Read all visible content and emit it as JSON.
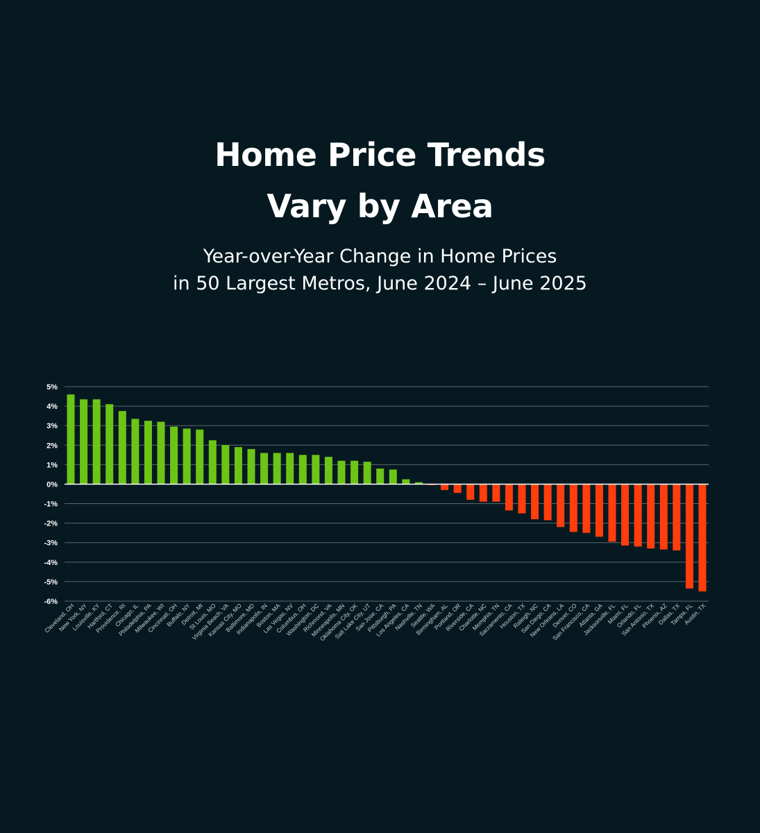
{
  "title_lines": [
    "Home Price Trends",
    "Vary by Area"
  ],
  "subtitle_lines": [
    "Year-over-Year Change in Home Prices",
    "in 50 Largest Metros, June 2024 – June 2025"
  ],
  "colors": {
    "background": "#061920",
    "positive": "#6CC417",
    "negative": "#FF3D0D",
    "grid": "#5b6a70",
    "zero_line": "#ffffff",
    "text": "#ffffff"
  },
  "chart_data": {
    "type": "bar",
    "title": "Year-over-Year Change in Home Prices in 50 Largest Metros, June 2024 – June 2025",
    "xlabel": "",
    "ylabel": "",
    "ylim": [
      -6,
      5
    ],
    "yticks": [
      5,
      4,
      3,
      2,
      1,
      0,
      -1,
      -2,
      -3,
      -4,
      -5,
      -6
    ],
    "ytick_labels": [
      "5%",
      "4%",
      "3%",
      "2%",
      "1%",
      "0%",
      "-1%",
      "-2%",
      "-3%",
      "-4%",
      "-5%",
      "-6%"
    ],
    "grid": true,
    "legend": "none",
    "categories": [
      "Cleveland, OH",
      "New York, NY",
      "Louisville, KY",
      "Hartford, CT",
      "Providence, RI",
      "Chicago, IL",
      "Philadelphia, PA",
      "Milwaukee, WI",
      "Cincinnati, OH",
      "Buffalo, NY",
      "Detroit, MI",
      "St Louis, MO",
      "Virginia Beach, VA",
      "Kansas City, MO",
      "Baltimore, MD",
      "Indianapolis, IN",
      "Boston, MA",
      "Las Vegas, NV",
      "Columbus, OH",
      "Washington, DC",
      "Richmond, VA",
      "Minneapolis, MN",
      "Oklahoma City, OK",
      "Salt Lake City, UT",
      "San Jose, CA",
      "Pittsburgh, PA",
      "Los Angeles, CA",
      "Nashville, TN",
      "Seattle, WA",
      "Birmingham, AL",
      "Portland, OR",
      "Riverside, CA",
      "Charlotte, NC",
      "Memphis, TN",
      "Sacramento, CA",
      "Houston, TX",
      "Raleigh, NC",
      "San Diego, CA",
      "New Orleans, LA",
      "Denver, CO",
      "San Francisco, CA",
      "Atlanta, GA",
      "Jacksonville, FL",
      "Miami, FL",
      "Orlando, FL",
      "San Antonio, TX",
      "Phoenix, AZ",
      "Dallas, TX",
      "Tampa, FL",
      "Austin, TX"
    ],
    "values": [
      4.6,
      4.35,
      4.35,
      4.1,
      3.75,
      3.35,
      3.25,
      3.2,
      2.95,
      2.85,
      2.8,
      2.25,
      2.0,
      1.9,
      1.8,
      1.6,
      1.6,
      1.6,
      1.5,
      1.5,
      1.4,
      1.2,
      1.2,
      1.15,
      0.8,
      0.75,
      0.25,
      0.1,
      -0.05,
      -0.3,
      -0.45,
      -0.8,
      -0.9,
      -0.9,
      -1.35,
      -1.5,
      -1.8,
      -1.85,
      -2.2,
      -2.45,
      -2.5,
      -2.7,
      -2.95,
      -3.15,
      -3.2,
      -3.3,
      -3.35,
      -3.4,
      -5.35,
      -5.5
    ]
  }
}
